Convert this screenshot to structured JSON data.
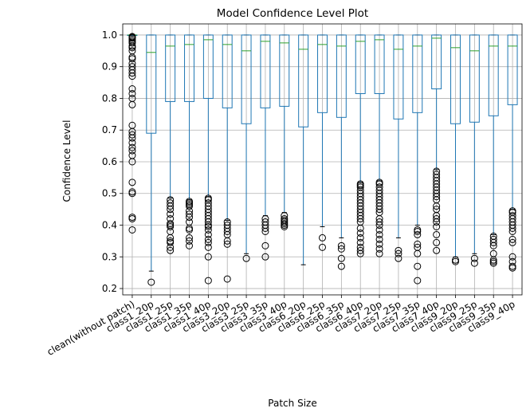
{
  "chart_data": {
    "type": "box",
    "title": "Model Confidence Level Plot",
    "xlabel": "Patch Size",
    "ylabel": "Confidence Level",
    "ylim": [
      0.18,
      1.035
    ],
    "yticks": [
      0.2,
      0.3,
      0.4,
      0.5,
      0.6,
      0.7,
      0.8,
      0.9,
      1.0
    ],
    "ytick_labels": [
      "0.2",
      "0.3",
      "0.4",
      "0.5",
      "0.6",
      "0.7",
      "0.8",
      "0.9",
      "1.0"
    ],
    "grid": true,
    "colors": {
      "box": "#1f77b4",
      "median": "#2ca02c",
      "grid": "#b0b0b0",
      "outlier": "#000000"
    },
    "categories": [
      "clean(without patch)",
      "class1_20p",
      "class1_25p",
      "class1_35p",
      "class1_40p",
      "class3_20p",
      "class3_25p",
      "class3_35p",
      "class3_40p",
      "class6_20p",
      "class6_25p",
      "class6_35p",
      "class6_40p",
      "class7_20p",
      "class7_25p",
      "class7_35p",
      "class7_40p",
      "class9_20p",
      "class9_25p",
      "class9_35p",
      "class9_40p"
    ],
    "boxes": [
      {
        "q1": 0.999,
        "median": 1.0,
        "q3": 1.0,
        "whislo": 0.998,
        "whishi": 1.0,
        "fliers": [
          0.385,
          0.42,
          0.425,
          0.5,
          0.505,
          0.535,
          0.6,
          0.62,
          0.635,
          0.645,
          0.66,
          0.675,
          0.685,
          0.695,
          0.715,
          0.78,
          0.8,
          0.815,
          0.83,
          0.87,
          0.88,
          0.89,
          0.9,
          0.91,
          0.925,
          0.93,
          0.95,
          0.96,
          0.965,
          0.975,
          0.98,
          0.985,
          0.99,
          0.993,
          0.995
        ]
      },
      {
        "q1": 0.69,
        "median": 0.945,
        "q3": 1.0,
        "whislo": 0.255,
        "whishi": 1.0,
        "fliers": [
          0.22
        ]
      },
      {
        "q1": 0.79,
        "median": 0.965,
        "q3": 1.0,
        "whislo": 0.485,
        "whishi": 1.0,
        "fliers": [
          0.32,
          0.33,
          0.345,
          0.35,
          0.36,
          0.38,
          0.395,
          0.4,
          0.405,
          0.42,
          0.435,
          0.45,
          0.46,
          0.47,
          0.48
        ]
      },
      {
        "q1": 0.79,
        "median": 0.97,
        "q3": 1.0,
        "whislo": 0.48,
        "whishi": 1.0,
        "fliers": [
          0.335,
          0.35,
          0.36,
          0.385,
          0.39,
          0.41,
          0.425,
          0.435,
          0.445,
          0.46,
          0.465,
          0.47,
          0.475
        ]
      },
      {
        "q1": 0.8,
        "median": 0.985,
        "q3": 1.0,
        "whislo": 0.49,
        "whishi": 1.0,
        "fliers": [
          0.225,
          0.3,
          0.33,
          0.345,
          0.355,
          0.37,
          0.385,
          0.395,
          0.4,
          0.41,
          0.42,
          0.43,
          0.44,
          0.45,
          0.46,
          0.47,
          0.48,
          0.485
        ]
      },
      {
        "q1": 0.77,
        "median": 0.97,
        "q3": 1.0,
        "whislo": 0.415,
        "whishi": 1.0,
        "fliers": [
          0.23,
          0.34,
          0.35,
          0.37,
          0.38,
          0.39,
          0.4,
          0.41
        ]
      },
      {
        "q1": 0.72,
        "median": 0.95,
        "q3": 1.0,
        "whislo": 0.31,
        "whishi": 1.0,
        "fliers": [
          0.295
        ]
      },
      {
        "q1": 0.77,
        "median": 0.98,
        "q3": 1.0,
        "whislo": 0.43,
        "whishi": 1.0,
        "fliers": [
          0.3,
          0.335,
          0.38,
          0.39,
          0.4,
          0.41,
          0.42
        ]
      },
      {
        "q1": 0.775,
        "median": 0.975,
        "q3": 1.0,
        "whislo": 0.44,
        "whishi": 1.0,
        "fliers": [
          0.395,
          0.4,
          0.405,
          0.41,
          0.415,
          0.42,
          0.43
        ]
      },
      {
        "q1": 0.71,
        "median": 0.955,
        "q3": 1.0,
        "whislo": 0.275,
        "whishi": 1.0,
        "fliers": []
      },
      {
        "q1": 0.755,
        "median": 0.97,
        "q3": 1.0,
        "whislo": 0.395,
        "whishi": 1.0,
        "fliers": [
          0.33,
          0.36
        ]
      },
      {
        "q1": 0.74,
        "median": 0.965,
        "q3": 1.0,
        "whislo": 0.36,
        "whishi": 1.0,
        "fliers": [
          0.27,
          0.295,
          0.325,
          0.335
        ]
      },
      {
        "q1": 0.815,
        "median": 0.98,
        "q3": 1.0,
        "whislo": 0.535,
        "whishi": 1.0,
        "fliers": [
          0.31,
          0.32,
          0.33,
          0.345,
          0.36,
          0.375,
          0.39,
          0.41,
          0.42,
          0.43,
          0.44,
          0.45,
          0.46,
          0.47,
          0.48,
          0.49,
          0.5,
          0.51,
          0.52,
          0.525,
          0.53
        ]
      },
      {
        "q1": 0.815,
        "median": 0.985,
        "q3": 1.0,
        "whislo": 0.54,
        "whishi": 1.0,
        "fliers": [
          0.31,
          0.325,
          0.34,
          0.355,
          0.37,
          0.385,
          0.4,
          0.41,
          0.42,
          0.44,
          0.45,
          0.46,
          0.47,
          0.48,
          0.49,
          0.5,
          0.51,
          0.52,
          0.53,
          0.535
        ]
      },
      {
        "q1": 0.735,
        "median": 0.955,
        "q3": 1.0,
        "whislo": 0.36,
        "whishi": 1.0,
        "fliers": [
          0.295,
          0.31,
          0.32
        ]
      },
      {
        "q1": 0.755,
        "median": 0.965,
        "q3": 1.0,
        "whislo": 0.4,
        "whishi": 1.0,
        "fliers": [
          0.225,
          0.27,
          0.31,
          0.33,
          0.34,
          0.37,
          0.38,
          0.385
        ]
      },
      {
        "q1": 0.83,
        "median": 0.99,
        "q3": 1.0,
        "whislo": 0.575,
        "whishi": 1.0,
        "fliers": [
          0.32,
          0.345,
          0.37,
          0.395,
          0.41,
          0.42,
          0.43,
          0.45,
          0.46,
          0.48,
          0.49,
          0.5,
          0.51,
          0.52,
          0.53,
          0.54,
          0.55,
          0.56,
          0.57
        ]
      },
      {
        "q1": 0.72,
        "median": 0.96,
        "q3": 1.0,
        "whislo": 0.3,
        "whishi": 1.0,
        "fliers": [
          0.285,
          0.29
        ]
      },
      {
        "q1": 0.725,
        "median": 0.95,
        "q3": 1.0,
        "whislo": 0.31,
        "whishi": 1.0,
        "fliers": [
          0.28,
          0.295
        ]
      },
      {
        "q1": 0.745,
        "median": 0.965,
        "q3": 1.0,
        "whislo": 0.37,
        "whishi": 1.0,
        "fliers": [
          0.28,
          0.285,
          0.29,
          0.31,
          0.335,
          0.345,
          0.355,
          0.365
        ]
      },
      {
        "q1": 0.78,
        "median": 0.965,
        "q3": 1.0,
        "whislo": 0.45,
        "whishi": 1.0,
        "fliers": [
          0.265,
          0.27,
          0.285,
          0.3,
          0.345,
          0.355,
          0.38,
          0.39,
          0.4,
          0.41,
          0.42,
          0.43,
          0.44,
          0.445
        ]
      }
    ]
  }
}
